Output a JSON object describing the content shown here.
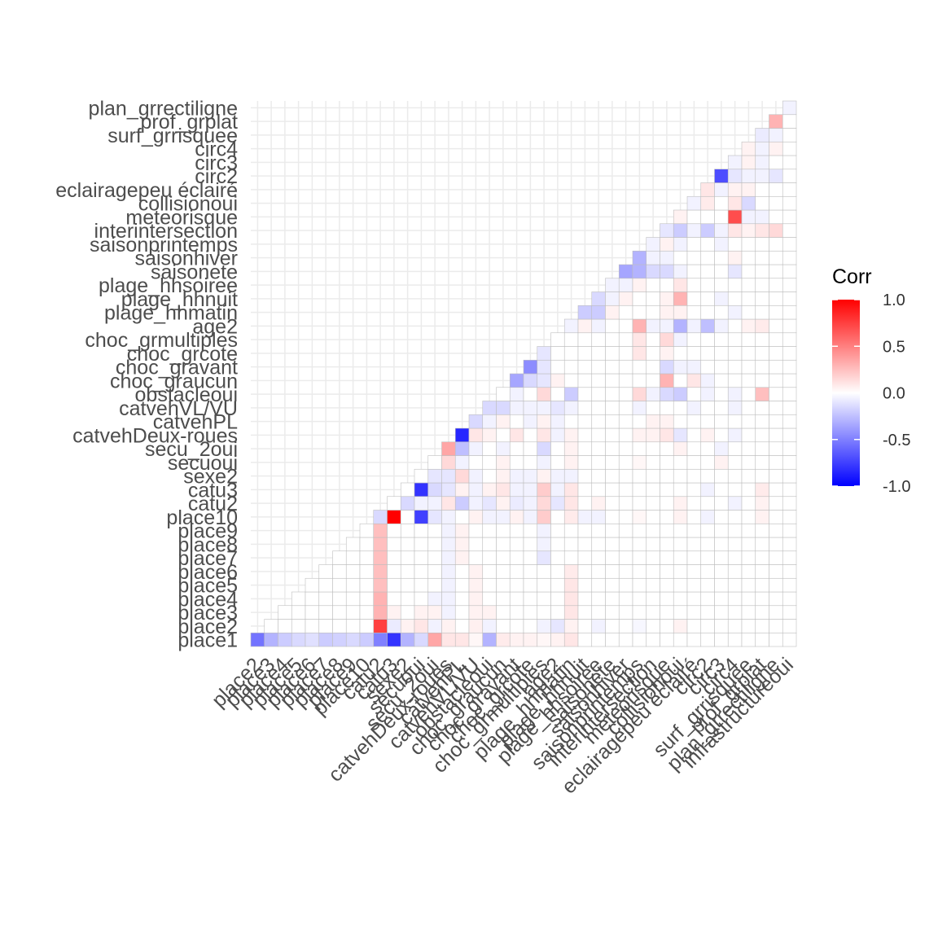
{
  "chart_data": {
    "type": "heatmap",
    "variables": [
      "place1",
      "place2",
      "place3",
      "place4",
      "place5",
      "place6",
      "place7",
      "place8",
      "place9",
      "place10",
      "catu2",
      "catu3",
      "sexe2",
      "secuoui",
      "secu_2oui",
      "catvehDeux-roues",
      "catvehPL",
      "catvehVL/VU",
      "obstacleoui",
      "choc_graucun",
      "choc_gravant",
      "choc_grcote",
      "choc_grmultiples",
      "age2",
      "plage_hhmatin",
      "plage_hhnuit",
      "plage_hhsoiree",
      "saisonete",
      "saisonhiver",
      "saisonprintemps",
      "interintersection",
      "meteorisque",
      "collisionoui",
      "eclairagepeu éclairé",
      "circ2",
      "circ3",
      "circ4",
      "surf_grrisquee",
      "prof_grplat",
      "plan_grrectiligne",
      "infrastructureoui"
    ],
    "cells": [
      [
        1,
        0,
        -0.55
      ],
      [
        2,
        0,
        -0.3
      ],
      [
        3,
        0,
        -0.2
      ],
      [
        4,
        0,
        -0.15
      ],
      [
        5,
        0,
        -0.12
      ],
      [
        6,
        0,
        -0.2
      ],
      [
        7,
        0,
        -0.18
      ],
      [
        8,
        0,
        -0.15
      ],
      [
        9,
        0,
        -0.2
      ],
      [
        10,
        0,
        -0.5
      ],
      [
        11,
        0,
        -0.8
      ],
      [
        12,
        0,
        -0.3
      ],
      [
        13,
        0,
        -0.15
      ],
      [
        14,
        0,
        0.35
      ],
      [
        15,
        0,
        0.1
      ],
      [
        16,
        0,
        0.1
      ],
      [
        17,
        0,
        0.03
      ],
      [
        18,
        0,
        -0.3
      ],
      [
        19,
        0,
        0.08
      ],
      [
        20,
        0,
        0.05
      ],
      [
        21,
        0,
        0.05
      ],
      [
        22,
        0,
        0.03
      ],
      [
        23,
        0,
        0.05
      ],
      [
        24,
        0,
        0.1
      ],
      [
        10,
        1,
        0.75
      ],
      [
        11,
        1,
        -0.08
      ],
      [
        12,
        1,
        0.05
      ],
      [
        13,
        1,
        0.1
      ],
      [
        14,
        1,
        -0.05
      ],
      [
        15,
        1,
        0.05
      ],
      [
        17,
        1,
        0.06
      ],
      [
        18,
        1,
        -0.05
      ],
      [
        22,
        1,
        -0.05
      ],
      [
        23,
        1,
        -0.1
      ],
      [
        24,
        1,
        0.05
      ],
      [
        26,
        1,
        -0.05
      ],
      [
        29,
        1,
        -0.03
      ],
      [
        32,
        1,
        0.05
      ],
      [
        10,
        2,
        0.3
      ],
      [
        11,
        2,
        0.05
      ],
      [
        13,
        2,
        0.05
      ],
      [
        14,
        2,
        0.05
      ],
      [
        15,
        2,
        -0.05
      ],
      [
        17,
        2,
        0.05
      ],
      [
        18,
        2,
        0.05
      ],
      [
        24,
        2,
        0.1
      ],
      [
        10,
        3,
        0.3
      ],
      [
        14,
        3,
        -0.05
      ],
      [
        15,
        3,
        -0.05
      ],
      [
        17,
        3,
        0.05
      ],
      [
        24,
        3,
        0.1
      ],
      [
        10,
        4,
        0.25
      ],
      [
        15,
        4,
        -0.05
      ],
      [
        17,
        4,
        0.05
      ],
      [
        24,
        4,
        0.1
      ],
      [
        10,
        5,
        0.25
      ],
      [
        15,
        5,
        -0.05
      ],
      [
        17,
        5,
        0.05
      ],
      [
        24,
        5,
        0.08
      ],
      [
        10,
        6,
        0.25
      ],
      [
        15,
        6,
        -0.05
      ],
      [
        16,
        6,
        0.05
      ],
      [
        22,
        6,
        -0.1
      ],
      [
        10,
        7,
        0.25
      ],
      [
        15,
        7,
        -0.05
      ],
      [
        16,
        7,
        0.05
      ],
      [
        22,
        7,
        -0.05
      ],
      [
        10,
        8,
        0.25
      ],
      [
        15,
        8,
        -0.05
      ],
      [
        16,
        8,
        0.05
      ],
      [
        22,
        8,
        -0.05
      ],
      [
        10,
        9,
        -0.15
      ],
      [
        11,
        9,
        1.0
      ],
      [
        13,
        9,
        -0.75
      ],
      [
        14,
        9,
        -0.1
      ],
      [
        15,
        9,
        -0.05
      ],
      [
        17,
        9,
        0.05
      ],
      [
        18,
        9,
        -0.05
      ],
      [
        19,
        9,
        -0.05
      ],
      [
        20,
        9,
        0.05
      ],
      [
        21,
        9,
        -0.05
      ],
      [
        22,
        9,
        0.2
      ],
      [
        24,
        9,
        0.08
      ],
      [
        25,
        9,
        -0.05
      ],
      [
        26,
        9,
        -0.05
      ],
      [
        29,
        9,
        0.03
      ],
      [
        32,
        9,
        0.05
      ],
      [
        34,
        9,
        -0.05
      ],
      [
        38,
        9,
        0.05
      ],
      [
        12,
        10,
        -0.15
      ],
      [
        13,
        10,
        -0.05
      ],
      [
        14,
        10,
        -0.05
      ],
      [
        15,
        10,
        0.1
      ],
      [
        16,
        10,
        -0.2
      ],
      [
        17,
        10,
        -0.05
      ],
      [
        18,
        10,
        -0.1
      ],
      [
        19,
        10,
        0.05
      ],
      [
        20,
        10,
        -0.08
      ],
      [
        21,
        10,
        -0.05
      ],
      [
        22,
        10,
        0.15
      ],
      [
        23,
        10,
        -0.1
      ],
      [
        24,
        10,
        0.1
      ],
      [
        26,
        10,
        0.05
      ],
      [
        32,
        10,
        0.05
      ],
      [
        36,
        10,
        -0.05
      ],
      [
        38,
        10,
        0.05
      ],
      [
        13,
        11,
        -0.8
      ],
      [
        14,
        11,
        -0.15
      ],
      [
        15,
        11,
        -0.1
      ],
      [
        16,
        11,
        0.05
      ],
      [
        17,
        11,
        -0.05
      ],
      [
        18,
        11,
        0.05
      ],
      [
        19,
        11,
        0.1
      ],
      [
        20,
        11,
        -0.05
      ],
      [
        21,
        11,
        -0.05
      ],
      [
        22,
        11,
        0.2
      ],
      [
        23,
        11,
        -0.05
      ],
      [
        24,
        11,
        0.1
      ],
      [
        34,
        11,
        -0.05
      ],
      [
        38,
        11,
        0.08
      ],
      [
        14,
        12,
        -0.1
      ],
      [
        15,
        12,
        -0.1
      ],
      [
        16,
        12,
        0.15
      ],
      [
        17,
        12,
        -0.05
      ],
      [
        19,
        12,
        0.05
      ],
      [
        20,
        12,
        -0.05
      ],
      [
        21,
        12,
        -0.05
      ],
      [
        22,
        12,
        0.05
      ],
      [
        23,
        12,
        -0.05
      ],
      [
        24,
        12,
        -0.05
      ],
      [
        15,
        13,
        0.15
      ],
      [
        16,
        13,
        -0.05
      ],
      [
        19,
        13,
        0.05
      ],
      [
        22,
        13,
        -0.05
      ],
      [
        24,
        13,
        0.05
      ],
      [
        29,
        13,
        0.03
      ],
      [
        35,
        13,
        0.05
      ],
      [
        15,
        14,
        0.35
      ],
      [
        16,
        14,
        -0.25
      ],
      [
        17,
        14,
        -0.05
      ],
      [
        19,
        14,
        -0.05
      ],
      [
        22,
        14,
        -0.15
      ],
      [
        24,
        14,
        0.05
      ],
      [
        32,
        14,
        0.05
      ],
      [
        35,
        14,
        -0.05
      ],
      [
        16,
        15,
        -0.85
      ],
      [
        17,
        15,
        0.1
      ],
      [
        18,
        15,
        0.05
      ],
      [
        20,
        15,
        0.1
      ],
      [
        22,
        15,
        0.1
      ],
      [
        23,
        15,
        -0.05
      ],
      [
        24,
        15,
        0.05
      ],
      [
        29,
        15,
        0.05
      ],
      [
        30,
        15,
        0.05
      ],
      [
        31,
        15,
        0.1
      ],
      [
        32,
        15,
        -0.1
      ],
      [
        34,
        15,
        0.05
      ],
      [
        36,
        15,
        -0.05
      ],
      [
        17,
        16,
        -0.15
      ],
      [
        18,
        16,
        -0.05
      ],
      [
        19,
        16,
        0.05
      ],
      [
        21,
        16,
        -0.05
      ],
      [
        22,
        16,
        0.05
      ],
      [
        23,
        16,
        -0.05
      ],
      [
        30,
        16,
        0.05
      ],
      [
        31,
        16,
        0.05
      ],
      [
        18,
        17,
        -0.15
      ],
      [
        19,
        17,
        -0.15
      ],
      [
        20,
        17,
        -0.05
      ],
      [
        21,
        17,
        -0.05
      ],
      [
        22,
        17,
        -0.05
      ],
      [
        23,
        17,
        -0.1
      ],
      [
        24,
        17,
        -0.05
      ],
      [
        29,
        17,
        -0.05
      ],
      [
        33,
        17,
        -0.05
      ],
      [
        36,
        17,
        -0.05
      ],
      [
        20,
        18,
        -0.05
      ],
      [
        22,
        18,
        0.15
      ],
      [
        24,
        18,
        -0.2
      ],
      [
        29,
        18,
        0.15
      ],
      [
        30,
        18,
        -0.05
      ],
      [
        31,
        18,
        -0.15
      ],
      [
        32,
        18,
        -0.2
      ],
      [
        34,
        18,
        -0.05
      ],
      [
        36,
        18,
        -0.05
      ],
      [
        38,
        18,
        0.25
      ],
      [
        20,
        19,
        -0.35
      ],
      [
        21,
        19,
        -0.15
      ],
      [
        22,
        19,
        -0.1
      ],
      [
        23,
        19,
        0.05
      ],
      [
        31,
        19,
        0.3
      ],
      [
        33,
        19,
        0.1
      ],
      [
        34,
        19,
        -0.05
      ],
      [
        21,
        20,
        -0.45
      ],
      [
        22,
        20,
        -0.1
      ],
      [
        31,
        20,
        -0.15
      ],
      [
        32,
        20,
        -0.05
      ],
      [
        33,
        20,
        -0.05
      ],
      [
        22,
        21,
        -0.1
      ],
      [
        29,
        21,
        0.1
      ],
      [
        31,
        21,
        0.05
      ],
      [
        29,
        22,
        0.1
      ],
      [
        31,
        22,
        0.15
      ],
      [
        32,
        22,
        -0.05
      ],
      [
        24,
        23,
        -0.05
      ],
      [
        25,
        23,
        0.05
      ],
      [
        26,
        23,
        -0.05
      ],
      [
        29,
        23,
        0.3
      ],
      [
        30,
        23,
        -0.05
      ],
      [
        31,
        23,
        -0.05
      ],
      [
        32,
        23,
        -0.3
      ],
      [
        33,
        23,
        -0.05
      ],
      [
        34,
        23,
        -0.25
      ],
      [
        35,
        23,
        -0.05
      ],
      [
        37,
        23,
        0.05
      ],
      [
        38,
        23,
        0.08
      ],
      [
        25,
        24,
        -0.2
      ],
      [
        26,
        24,
        -0.2
      ],
      [
        27,
        24,
        0.05
      ],
      [
        31,
        24,
        0.05
      ],
      [
        32,
        24,
        0.05
      ],
      [
        36,
        24,
        -0.05
      ],
      [
        26,
        25,
        -0.15
      ],
      [
        27,
        25,
        -0.05
      ],
      [
        28,
        25,
        0.05
      ],
      [
        31,
        25,
        0.05
      ],
      [
        32,
        25,
        0.3
      ],
      [
        35,
        25,
        -0.05
      ],
      [
        27,
        26,
        -0.05
      ],
      [
        28,
        26,
        -0.05
      ],
      [
        29,
        26,
        0.05
      ],
      [
        32,
        26,
        0.1
      ],
      [
        28,
        27,
        -0.35
      ],
      [
        29,
        27,
        -0.3
      ],
      [
        30,
        27,
        -0.15
      ],
      [
        31,
        27,
        -0.15
      ],
      [
        32,
        27,
        -0.05
      ],
      [
        36,
        27,
        -0.1
      ],
      [
        29,
        28,
        -0.3
      ],
      [
        30,
        28,
        -0.05
      ],
      [
        31,
        28,
        -0.05
      ],
      [
        36,
        28,
        0.05
      ],
      [
        30,
        29,
        -0.05
      ],
      [
        31,
        29,
        0.05
      ],
      [
        32,
        29,
        -0.05
      ],
      [
        35,
        29,
        -0.05
      ],
      [
        31,
        30,
        -0.1
      ],
      [
        32,
        30,
        -0.2
      ],
      [
        33,
        30,
        -0.05
      ],
      [
        34,
        30,
        -0.2
      ],
      [
        35,
        30,
        -0.05
      ],
      [
        36,
        30,
        0.1
      ],
      [
        37,
        30,
        0.05
      ],
      [
        38,
        30,
        0.1
      ],
      [
        39,
        30,
        0.15
      ],
      [
        32,
        31,
        0.05
      ],
      [
        36,
        31,
        0.7
      ],
      [
        37,
        31,
        -0.05
      ],
      [
        38,
        31,
        -0.05
      ],
      [
        33,
        32,
        -0.05
      ],
      [
        34,
        32,
        0.08
      ],
      [
        36,
        32,
        0.1
      ],
      [
        37,
        32,
        -0.15
      ],
      [
        34,
        33,
        0.1
      ],
      [
        35,
        33,
        -0.05
      ],
      [
        36,
        33,
        0.05
      ],
      [
        37,
        33,
        0.05
      ],
      [
        35,
        34,
        -0.7
      ],
      [
        36,
        34,
        -0.1
      ],
      [
        37,
        34,
        -0.05
      ],
      [
        38,
        34,
        -0.05
      ],
      [
        39,
        34,
        -0.1
      ],
      [
        36,
        35,
        -0.05
      ],
      [
        37,
        35,
        0.05
      ],
      [
        38,
        35,
        -0.05
      ],
      [
        37,
        36,
        0.05
      ],
      [
        38,
        36,
        -0.05
      ],
      [
        39,
        36,
        0.05
      ],
      [
        38,
        37,
        -0.08
      ],
      [
        39,
        37,
        -0.05
      ],
      [
        39,
        38,
        0.3
      ],
      [
        40,
        39,
        -0.05
      ]
    ],
    "legend": {
      "title": "Corr",
      "ticks": [
        1.0,
        0.5,
        0.0,
        -0.5,
        -1.0
      ],
      "tick_labels": [
        "1.0",
        "0.5",
        "0.0",
        "-0.5",
        "-1.0"
      ],
      "placement": "right"
    },
    "colors": {
      "low": "#0000ff",
      "mid": "#ffffff",
      "high": "#ff0000",
      "tile_border": "#bebebe",
      "grid": "#ebebeb"
    },
    "xlabel": "",
    "ylabel": ""
  }
}
